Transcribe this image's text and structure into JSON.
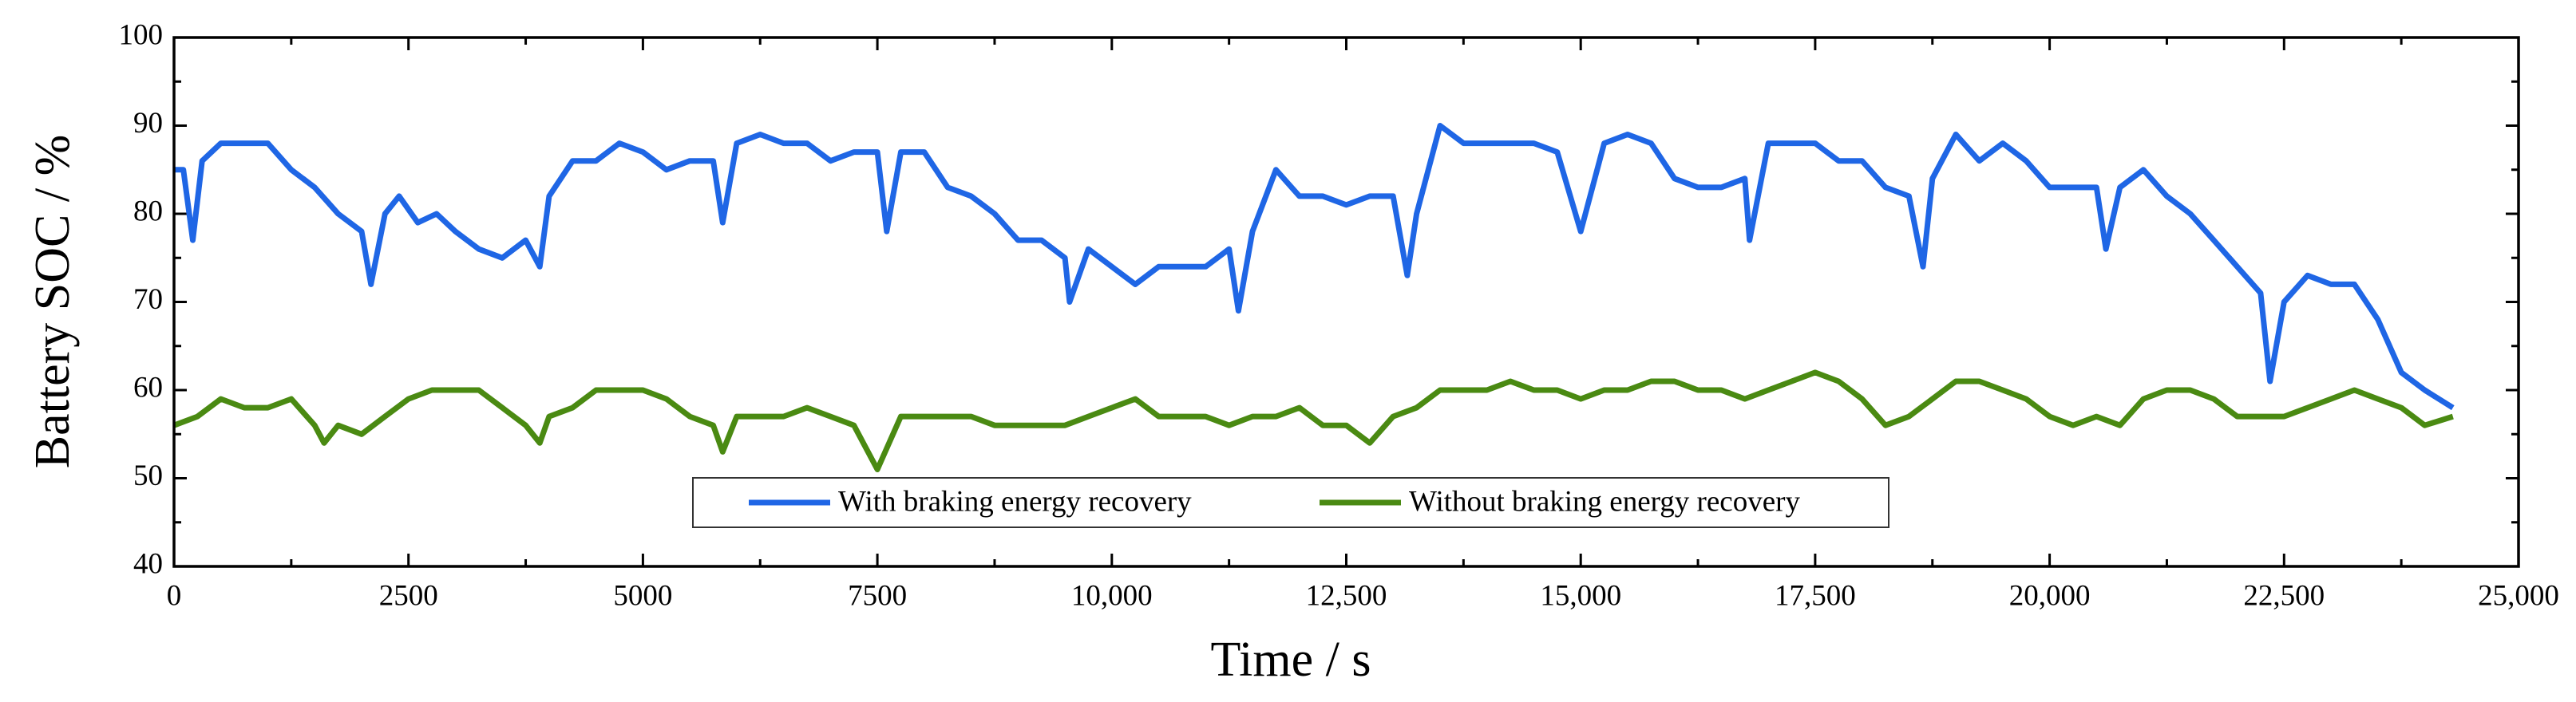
{
  "chart_data": {
    "type": "line",
    "xlabel": "Time / s",
    "ylabel": "Battery SOC / %",
    "xlim": [
      0,
      25000
    ],
    "ylim": [
      40,
      100
    ],
    "xticks": [
      0,
      2500,
      5000,
      7500,
      {
        "value": 10000,
        "label": "10,000"
      },
      {
        "value": 12500,
        "label": "12,500"
      },
      {
        "value": 15000,
        "label": "15,000"
      },
      {
        "value": 17500,
        "label": "17,500"
      },
      {
        "value": 20000,
        "label": "20,000"
      },
      {
        "value": 22500,
        "label": "22,500"
      },
      {
        "value": 25000,
        "label": "25,000"
      }
    ],
    "yticks": [
      40,
      50,
      60,
      70,
      80,
      90,
      100
    ],
    "legend": "bottom",
    "series": [
      {
        "name": "With braking energy recovery",
        "color": "#1f66e5",
        "x": [
          0,
          100,
          200,
          300,
          500,
          750,
          1000,
          1250,
          1500,
          1750,
          2000,
          2100,
          2250,
          2400,
          2600,
          2800,
          3000,
          3250,
          3500,
          3750,
          3900,
          4000,
          4250,
          4500,
          4750,
          5000,
          5250,
          5500,
          5750,
          5850,
          6000,
          6250,
          6500,
          6750,
          7000,
          7250,
          7500,
          7600,
          7750,
          8000,
          8250,
          8500,
          8750,
          9000,
          9250,
          9500,
          9550,
          9750,
          10000,
          10250,
          10500,
          10750,
          11000,
          11250,
          11350,
          11500,
          11750,
          12000,
          12250,
          12500,
          12750,
          13000,
          13150,
          13250,
          13500,
          13750,
          14000,
          14250,
          14500,
          14750,
          15000,
          15250,
          15500,
          15750,
          16000,
          16250,
          16500,
          16750,
          16800,
          17000,
          17250,
          17500,
          17750,
          18000,
          18250,
          18500,
          18650,
          18750,
          19000,
          19250,
          19500,
          19750,
          20000,
          20250,
          20500,
          20600,
          20750,
          21000,
          21250,
          21500,
          21750,
          22000,
          22250,
          22350,
          22500,
          22750,
          23000,
          23250,
          23500,
          23750,
          24000,
          24300
        ],
        "values": [
          85,
          85,
          77,
          86,
          88,
          88,
          88,
          85,
          83,
          80,
          78,
          72,
          80,
          82,
          79,
          80,
          78,
          76,
          75,
          77,
          74,
          82,
          86,
          86,
          88,
          87,
          85,
          86,
          86,
          79,
          88,
          89,
          88,
          88,
          86,
          87,
          87,
          78,
          87,
          87,
          83,
          82,
          80,
          77,
          77,
          75,
          70,
          76,
          74,
          72,
          74,
          74,
          74,
          76,
          69,
          78,
          85,
          82,
          82,
          81,
          82,
          82,
          73,
          80,
          90,
          88,
          88,
          88,
          88,
          87,
          78,
          88,
          89,
          88,
          84,
          83,
          83,
          84,
          77,
          88,
          88,
          88,
          86,
          86,
          83,
          82,
          74,
          84,
          89,
          86,
          88,
          86,
          83,
          83,
          83,
          76,
          83,
          85,
          82,
          80,
          77,
          74,
          71,
          61,
          70,
          73,
          72,
          72,
          68,
          62,
          60,
          58
        ]
      },
      {
        "name": "Without braking energy recovery",
        "color": "#4a8a12",
        "x": [
          0,
          250,
          500,
          750,
          1000,
          1250,
          1500,
          1600,
          1750,
          2000,
          2250,
          2500,
          2750,
          3000,
          3250,
          3500,
          3750,
          3900,
          4000,
          4250,
          4500,
          4750,
          5000,
          5250,
          5500,
          5750,
          5850,
          6000,
          6250,
          6500,
          6750,
          7000,
          7250,
          7500,
          7750,
          8000,
          8250,
          8500,
          8750,
          9000,
          9250,
          9500,
          9750,
          10000,
          10250,
          10500,
          10750,
          11000,
          11250,
          11500,
          11750,
          12000,
          12250,
          12500,
          12750,
          13000,
          13250,
          13500,
          13750,
          14000,
          14250,
          14500,
          14750,
          15000,
          15250,
          15500,
          15750,
          16000,
          16250,
          16500,
          16750,
          17000,
          17250,
          17500,
          17750,
          18000,
          18250,
          18500,
          18750,
          19000,
          19250,
          19500,
          19750,
          20000,
          20250,
          20500,
          20750,
          21000,
          21250,
          21500,
          21750,
          22000,
          22250,
          22500,
          22750,
          23000,
          23250,
          23500,
          23750,
          24000,
          24300
        ],
        "values": [
          56,
          57,
          59,
          58,
          58,
          59,
          56,
          54,
          56,
          55,
          57,
          59,
          60,
          60,
          60,
          58,
          56,
          54,
          57,
          58,
          60,
          60,
          60,
          59,
          57,
          56,
          53,
          57,
          57,
          57,
          58,
          57,
          56,
          51,
          57,
          57,
          57,
          57,
          56,
          56,
          56,
          56,
          57,
          58,
          59,
          57,
          57,
          57,
          56,
          57,
          57,
          58,
          56,
          56,
          54,
          57,
          58,
          60,
          60,
          60,
          61,
          60,
          60,
          59,
          60,
          60,
          61,
          61,
          60,
          60,
          59,
          60,
          61,
          62,
          61,
          59,
          56,
          57,
          59,
          61,
          61,
          60,
          59,
          57,
          56,
          57,
          56,
          59,
          60,
          60,
          59,
          57,
          57,
          57,
          58,
          59,
          60,
          59,
          58,
          56,
          57
        ]
      }
    ]
  }
}
